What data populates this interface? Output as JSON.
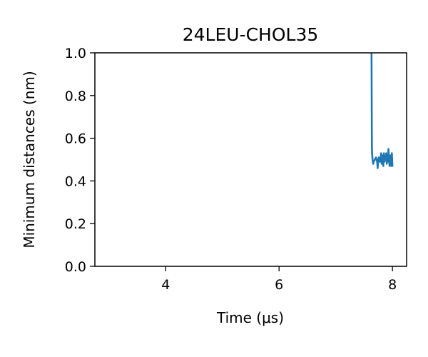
{
  "chart_data": {
    "type": "line",
    "title": "24LEU-CHOL35",
    "xlabel": "Time (μs)",
    "ylabel": "Minimum distances (nm)",
    "xlim": [
      2.75,
      8.25
    ],
    "ylim": [
      0.0,
      1.0
    ],
    "xticks": [
      4,
      6,
      8
    ],
    "xtick_labels": [
      "4",
      "6",
      "8"
    ],
    "yticks": [
      0.0,
      0.2,
      0.4,
      0.6,
      0.8,
      1.0
    ],
    "ytick_labels": [
      "0.0",
      "0.2",
      "0.4",
      "0.6",
      "0.8",
      "1.0"
    ],
    "grid": false,
    "series": [
      {
        "name": "minimum distance",
        "color": "#1f77b4",
        "x": [
          7.63,
          7.632,
          7.634,
          7.636,
          7.638,
          7.64,
          7.65,
          7.66,
          7.67,
          7.69,
          7.71,
          7.73,
          7.74,
          7.75,
          7.76,
          7.78,
          7.79,
          7.8,
          7.81,
          7.82,
          7.83,
          7.84,
          7.85,
          7.86,
          7.87,
          7.88,
          7.89,
          7.9,
          7.91,
          7.92,
          7.93,
          7.94,
          7.95,
          7.96,
          7.97,
          7.98,
          7.99,
          8.0
        ],
        "y": [
          1.05,
          0.95,
          0.8,
          0.66,
          0.56,
          0.53,
          0.5,
          0.48,
          0.49,
          0.5,
          0.51,
          0.49,
          0.46,
          0.5,
          0.51,
          0.49,
          0.5,
          0.53,
          0.48,
          0.52,
          0.5,
          0.47,
          0.53,
          0.49,
          0.51,
          0.5,
          0.53,
          0.48,
          0.52,
          0.49,
          0.55,
          0.5,
          0.47,
          0.52,
          0.51,
          0.47,
          0.53,
          0.47
        ]
      }
    ]
  }
}
